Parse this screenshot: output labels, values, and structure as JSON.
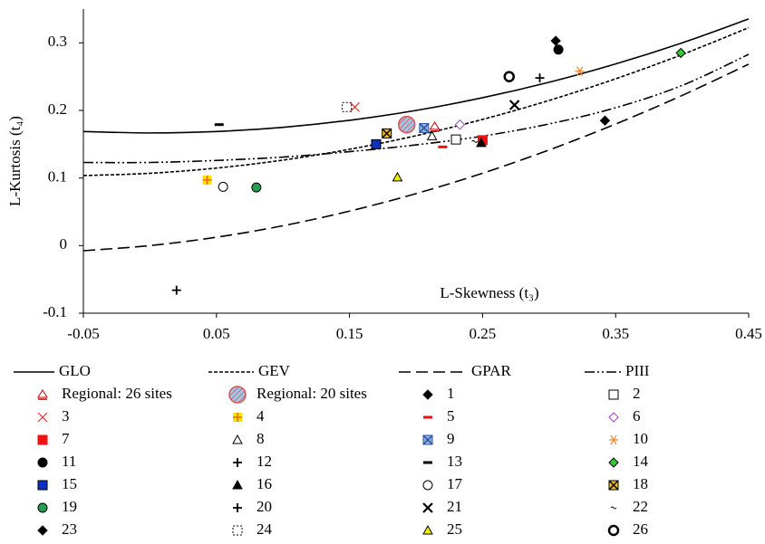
{
  "chart_data": {
    "type": "scatter",
    "y_label": "L-Kurtosis (t₄)",
    "x_label": "L-Skewness (t₃)",
    "xlim": [
      -0.05,
      0.45
    ],
    "xticks": [
      -0.05,
      0.05,
      0.15,
      0.25,
      0.35,
      0.45
    ],
    "ylim": [
      -0.1,
      0.35
    ],
    "yticks": [
      -0.1,
      0,
      0.1,
      0.2,
      0.3
    ],
    "x": [
      -0.05,
      0,
      0.05,
      0.1,
      0.15,
      0.2,
      0.25,
      0.3,
      0.35,
      0.4,
      0.45
    ],
    "series": [
      {
        "name": "GLO",
        "color": "#000000",
        "dash": "solid",
        "values": [
          0.1688,
          0.1667,
          0.1688,
          0.175,
          0.1854,
          0.2,
          0.2188,
          0.2417,
          0.2688,
          0.3,
          0.3354
        ]
      },
      {
        "name": "GEV",
        "color": "#000000",
        "dash": "short",
        "values": [
          0.1036,
          0.107,
          0.1147,
          0.1265,
          0.1425,
          0.1626,
          0.1867,
          0.2148,
          0.2468,
          0.2827,
          0.3224
        ]
      },
      {
        "name": "GPAR",
        "color": "#000000",
        "dash": "long",
        "values": [
          -0.0076,
          0,
          0.0124,
          0.0294,
          0.051,
          0.0769,
          0.1071,
          0.1415,
          0.1799,
          0.2222,
          0.2684
        ]
      },
      {
        "name": "PIII",
        "color": "#000000",
        "dash": "dash-dot-dot",
        "values": [
          0.123,
          0.123,
          0.126,
          0.131,
          0.139,
          0.149,
          0.162,
          0.18,
          0.204,
          0.237,
          0.283
        ]
      }
    ],
    "points": [
      {
        "name": "Regional: 26 sites",
        "marker": "triangle-bar",
        "fill": "none",
        "stroke": "#c00000",
        "x": 0.214,
        "y": 0.176
      },
      {
        "name": "Regional: 20 sites",
        "marker": "hatched-circle",
        "fill": "#9fc5e8",
        "stroke": "#e05050",
        "x": 0.193,
        "y": 0.179
      },
      {
        "name": "1",
        "marker": "diamond",
        "fill": "#000000",
        "stroke": "#000000",
        "x": 0.305,
        "y": 0.303
      },
      {
        "name": "2",
        "marker": "square",
        "fill": "#ffffff",
        "stroke": "#000000",
        "x": 0.23,
        "y": 0.157
      },
      {
        "name": "3",
        "marker": "x",
        "fill": "none",
        "stroke": "#e03030",
        "x": 0.154,
        "y": 0.205
      },
      {
        "name": "4",
        "marker": "square-plus",
        "fill": "#ffe000",
        "stroke": "#e07000",
        "x": 0.043,
        "y": 0.097
      },
      {
        "name": "5",
        "marker": "dash",
        "fill": "none",
        "stroke": "#ee1111",
        "x": 0.22,
        "y": 0.146
      },
      {
        "name": "6",
        "marker": "diamond",
        "fill": "#ffffff",
        "stroke": "#a040c0",
        "x": 0.233,
        "y": 0.179
      },
      {
        "name": "7",
        "marker": "square",
        "fill": "#ee1111",
        "stroke": "#ee1111",
        "x": 0.25,
        "y": 0.156
      },
      {
        "name": "8",
        "marker": "triangle",
        "fill": "#ffffff",
        "stroke": "#000000",
        "x": 0.212,
        "y": 0.162
      },
      {
        "name": "9",
        "marker": "square-x",
        "fill": "#8fb0e0",
        "stroke": "#3050a0",
        "x": 0.206,
        "y": 0.174
      },
      {
        "name": "10",
        "marker": "asterisk",
        "fill": "none",
        "stroke": "#f08030",
        "x": 0.323,
        "y": 0.258
      },
      {
        "name": "11",
        "marker": "circle",
        "fill": "#000000",
        "stroke": "#000000",
        "x": 0.307,
        "y": 0.29
      },
      {
        "name": "12",
        "marker": "plus",
        "fill": "none",
        "stroke": "#000000",
        "x": 0.293,
        "y": 0.248
      },
      {
        "name": "13",
        "marker": "dash",
        "fill": "none",
        "stroke": "#000000",
        "x": 0.052,
        "y": 0.179
      },
      {
        "name": "14",
        "marker": "diamond",
        "fill": "#33cc33",
        "stroke": "#000000",
        "x": 0.399,
        "y": 0.285
      },
      {
        "name": "15",
        "marker": "square",
        "fill": "#1030c0",
        "stroke": "#000000",
        "x": 0.17,
        "y": 0.15
      },
      {
        "name": "16",
        "marker": "triangle",
        "fill": "#000000",
        "stroke": "#000000",
        "x": 0.249,
        "y": 0.152
      },
      {
        "name": "17",
        "marker": "circle",
        "fill": "#ffffff",
        "stroke": "#000000",
        "x": 0.055,
        "y": 0.087
      },
      {
        "name": "18",
        "marker": "square-x",
        "fill": "#f0c020",
        "stroke": "#000000",
        "x": 0.178,
        "y": 0.166
      },
      {
        "name": "19",
        "marker": "circle",
        "fill": "#20a050",
        "stroke": "#000000",
        "x": 0.08,
        "y": 0.086
      },
      {
        "name": "20",
        "marker": "plus",
        "fill": "none",
        "stroke": "#000000",
        "x": 0.02,
        "y": -0.066
      },
      {
        "name": "21",
        "marker": "x",
        "fill": "none",
        "stroke": "#000000",
        "x": 0.274,
        "y": 0.208
      },
      {
        "name": "22",
        "marker": "tilde",
        "fill": "none",
        "stroke": "#000000",
        "x": 0.244,
        "y": 0.154
      },
      {
        "name": "23",
        "marker": "diamond",
        "fill": "#000000",
        "stroke": "#000000",
        "x": 0.342,
        "y": 0.185
      },
      {
        "name": "24",
        "marker": "dashed-square",
        "fill": "none",
        "stroke": "#000000",
        "x": 0.148,
        "y": 0.205
      },
      {
        "name": "25",
        "marker": "triangle",
        "fill": "#f0f000",
        "stroke": "#000000",
        "x": 0.186,
        "y": 0.101
      },
      {
        "name": "26",
        "marker": "bold-circle",
        "fill": "#ffffff",
        "stroke": "#000000",
        "x": 0.27,
        "y": 0.25
      }
    ]
  }
}
